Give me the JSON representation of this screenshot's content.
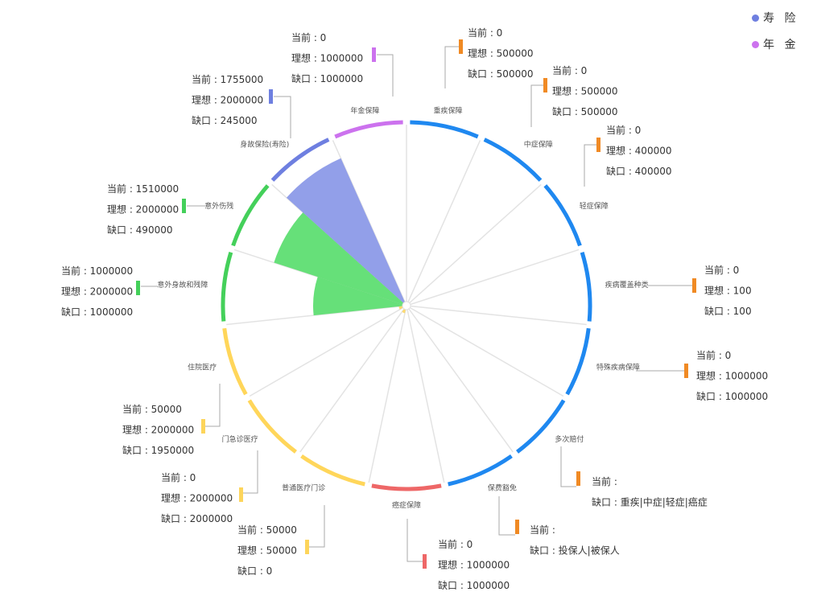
{
  "legend": [
    {
      "name": "寿险",
      "label": "寿 险",
      "color": "#6e7fe0"
    },
    {
      "name": "年金",
      "label": "年 金",
      "color": "#cc72ee"
    }
  ],
  "chart_data": {
    "type": "polar-bar",
    "title": "",
    "max_value": 2000000,
    "categories": [
      "重疾保障",
      "中症保障",
      "轻症保障",
      "疾病覆盖种类",
      "特殊疾病保障",
      "多次赔付",
      "保费豁免",
      "癌症保障",
      "普通医疗门诊",
      "门急诊医疗",
      "住院医疗",
      "意外身故和残障",
      "意外伤残",
      "身故保险(寿险)",
      "年金保障"
    ],
    "values": [
      0,
      0,
      0,
      0,
      0,
      0,
      0,
      0,
      50000,
      0,
      50000,
      1000000,
      1510000,
      1755000,
      0
    ],
    "ideal": [
      500000,
      500000,
      400000,
      100,
      1000000,
      null,
      null,
      1000000,
      50000,
      2000000,
      2000000,
      2000000,
      2000000,
      2000000,
      1000000
    ],
    "ring_colors": [
      "#1f88f0",
      "#1f88f0",
      "#1f88f0",
      "#1f88f0",
      "#1f88f0",
      "#1f88f0",
      "#1f88f0",
      "#ee6767",
      "#ffd65a",
      "#ffd65a",
      "#ffd65a",
      "#44d05a",
      "#44d05a",
      "#6e7fe0",
      "#cc72ee"
    ],
    "bar_colors": [
      "#1f88f0",
      "#1f88f0",
      "#1f88f0",
      "#1f88f0",
      "#1f88f0",
      "#1f88f0",
      "#1f88f0",
      "#ee6767",
      "#fdd868",
      "#fdd868",
      "#fdd868",
      "#5ede72",
      "#5ede72",
      "#8c9ae8",
      "#cc72ee"
    ],
    "tooltips": [
      {
        "lines": [
          "当前 : 0",
          "理想 : 500000",
          "缺口 : 500000"
        ],
        "color": "#f08a24"
      },
      {
        "lines": [
          "当前 : 0",
          "理想 : 500000",
          "缺口 : 500000"
        ],
        "color": "#f08a24"
      },
      {
        "lines": [
          "当前 : 0",
          "理想 : 400000",
          "缺口 : 400000"
        ],
        "color": "#f08a24"
      },
      {
        "lines": [
          "当前 : 0",
          "理想 : 100",
          "缺口 : 100"
        ],
        "color": "#f08a24"
      },
      {
        "lines": [
          "当前 : 0",
          "理想 : 1000000",
          "缺口 : 1000000"
        ],
        "color": "#f08a24"
      },
      {
        "lines": [
          "当前 :",
          "缺口 : 重疾|中症|轻症|癌症"
        ],
        "color": "#f08a24"
      },
      {
        "lines": [
          "当前 :",
          "缺口 : 投保人|被保人"
        ],
        "color": "#f08a24"
      },
      {
        "lines": [
          "当前 : 0",
          "理想 : 1000000",
          "缺口 : 1000000"
        ],
        "color": "#ee6767"
      },
      {
        "lines": [
          "当前 : 50000",
          "理想 : 50000",
          "缺口 : 0"
        ],
        "color": "#fdd55b"
      },
      {
        "lines": [
          "当前 : 0",
          "理想 : 2000000",
          "缺口 : 2000000"
        ],
        "color": "#fdd55b"
      },
      {
        "lines": [
          "当前 : 50000",
          "理想 : 2000000",
          "缺口 : 1950000"
        ],
        "color": "#fdd55b"
      },
      {
        "lines": [
          "当前 : 1000000",
          "理想 : 2000000",
          "缺口 : 1000000"
        ],
        "color": "#44d05a"
      },
      {
        "lines": [
          "当前 : 1510000",
          "理想 : 2000000",
          "缺口 : 490000"
        ],
        "color": "#44d05a"
      },
      {
        "lines": [
          "当前 : 1755000",
          "理想 : 2000000",
          "缺口 : 245000"
        ],
        "color": "#6e7fe0"
      },
      {
        "lines": [
          "当前 : 0",
          "理想 : 1000000",
          "缺口 : 1000000"
        ],
        "color": "#cc72ee"
      }
    ]
  }
}
